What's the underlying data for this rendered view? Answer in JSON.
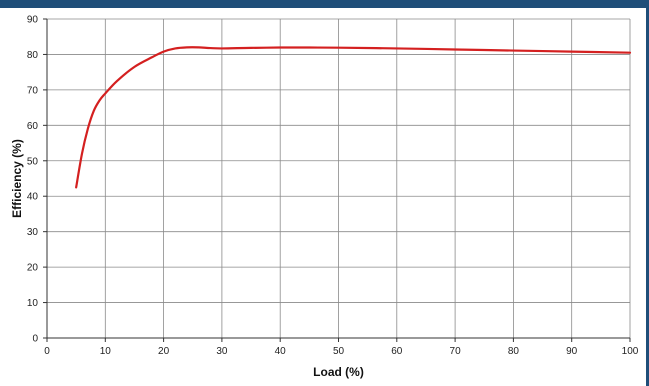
{
  "chart_data": {
    "type": "line",
    "title": "",
    "xlabel": "Load (%)",
    "ylabel": "Efficiency (%)",
    "xlim": [
      0,
      100
    ],
    "ylim": [
      0,
      90
    ],
    "x_ticks": [
      0,
      10,
      20,
      30,
      40,
      50,
      60,
      70,
      80,
      90,
      100
    ],
    "y_ticks": [
      0,
      10,
      20,
      30,
      40,
      50,
      60,
      70,
      80,
      90
    ],
    "grid": true,
    "series": [
      {
        "color": "#d42020",
        "x": [
          5,
          6,
          7,
          8,
          9,
          10,
          12,
          15,
          18,
          20,
          22,
          24,
          26,
          28,
          30,
          35,
          40,
          45,
          50,
          60,
          70,
          80,
          90,
          100
        ],
        "y": [
          42.5,
          52,
          59,
          64,
          67,
          69,
          72.5,
          76.5,
          79.2,
          80.8,
          81.7,
          82,
          82,
          81.8,
          81.7,
          81.85,
          81.95,
          81.95,
          81.9,
          81.7,
          81.4,
          81.1,
          80.8,
          80.5
        ]
      }
    ]
  },
  "decor": {
    "frame_color": "#1f4e79"
  }
}
